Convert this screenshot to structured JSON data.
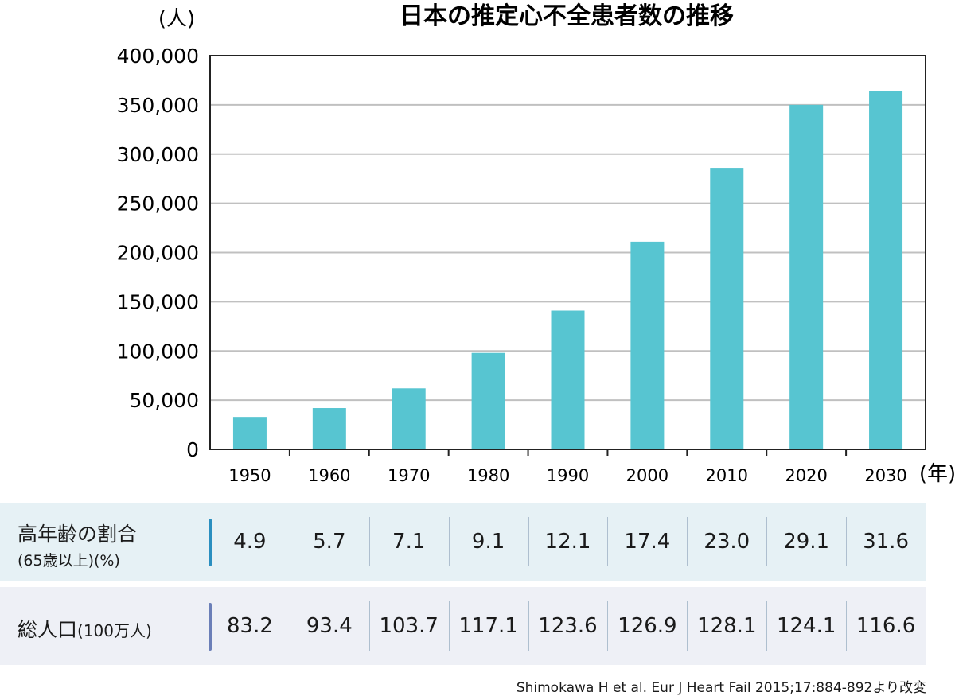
{
  "chart_data": {
    "type": "bar",
    "title": "日本の推定心不全患者数の推移",
    "ylabel": "(人)",
    "xlabel": "(年)",
    "categories": [
      "1950",
      "1960",
      "1970",
      "1980",
      "1990",
      "2000",
      "2010",
      "2020",
      "2030"
    ],
    "values": [
      33000,
      42000,
      62000,
      98000,
      141000,
      211000,
      286000,
      350000,
      364000
    ],
    "ylim": [
      0,
      400000
    ],
    "yticks": [
      "0",
      "50,000",
      "100,000",
      "150,000",
      "200,000",
      "250,000",
      "300,000",
      "350,000",
      "400,000"
    ],
    "ytick_values": [
      0,
      50000,
      100000,
      150000,
      200000,
      250000,
      300000,
      350000,
      400000
    ],
    "grid": true,
    "bar_color": "#57c5d1",
    "grid_color": "#c0c0c0"
  },
  "table": {
    "rows": [
      {
        "label": "高年齢の割合",
        "sublabel": "(65歳以上)(%)",
        "values": [
          "4.9",
          "5.7",
          "7.1",
          "9.1",
          "12.1",
          "17.4",
          "23.0",
          "29.1",
          "31.6"
        ]
      },
      {
        "label": "総人口",
        "sublabel": "(100万人)",
        "values": [
          "83.2",
          "93.4",
          "103.7",
          "117.1",
          "123.6",
          "126.9",
          "128.1",
          "124.1",
          "116.6"
        ]
      }
    ]
  },
  "source": "Shimokawa H et al. Eur J Heart Fail 2015;17:884-892より改変"
}
